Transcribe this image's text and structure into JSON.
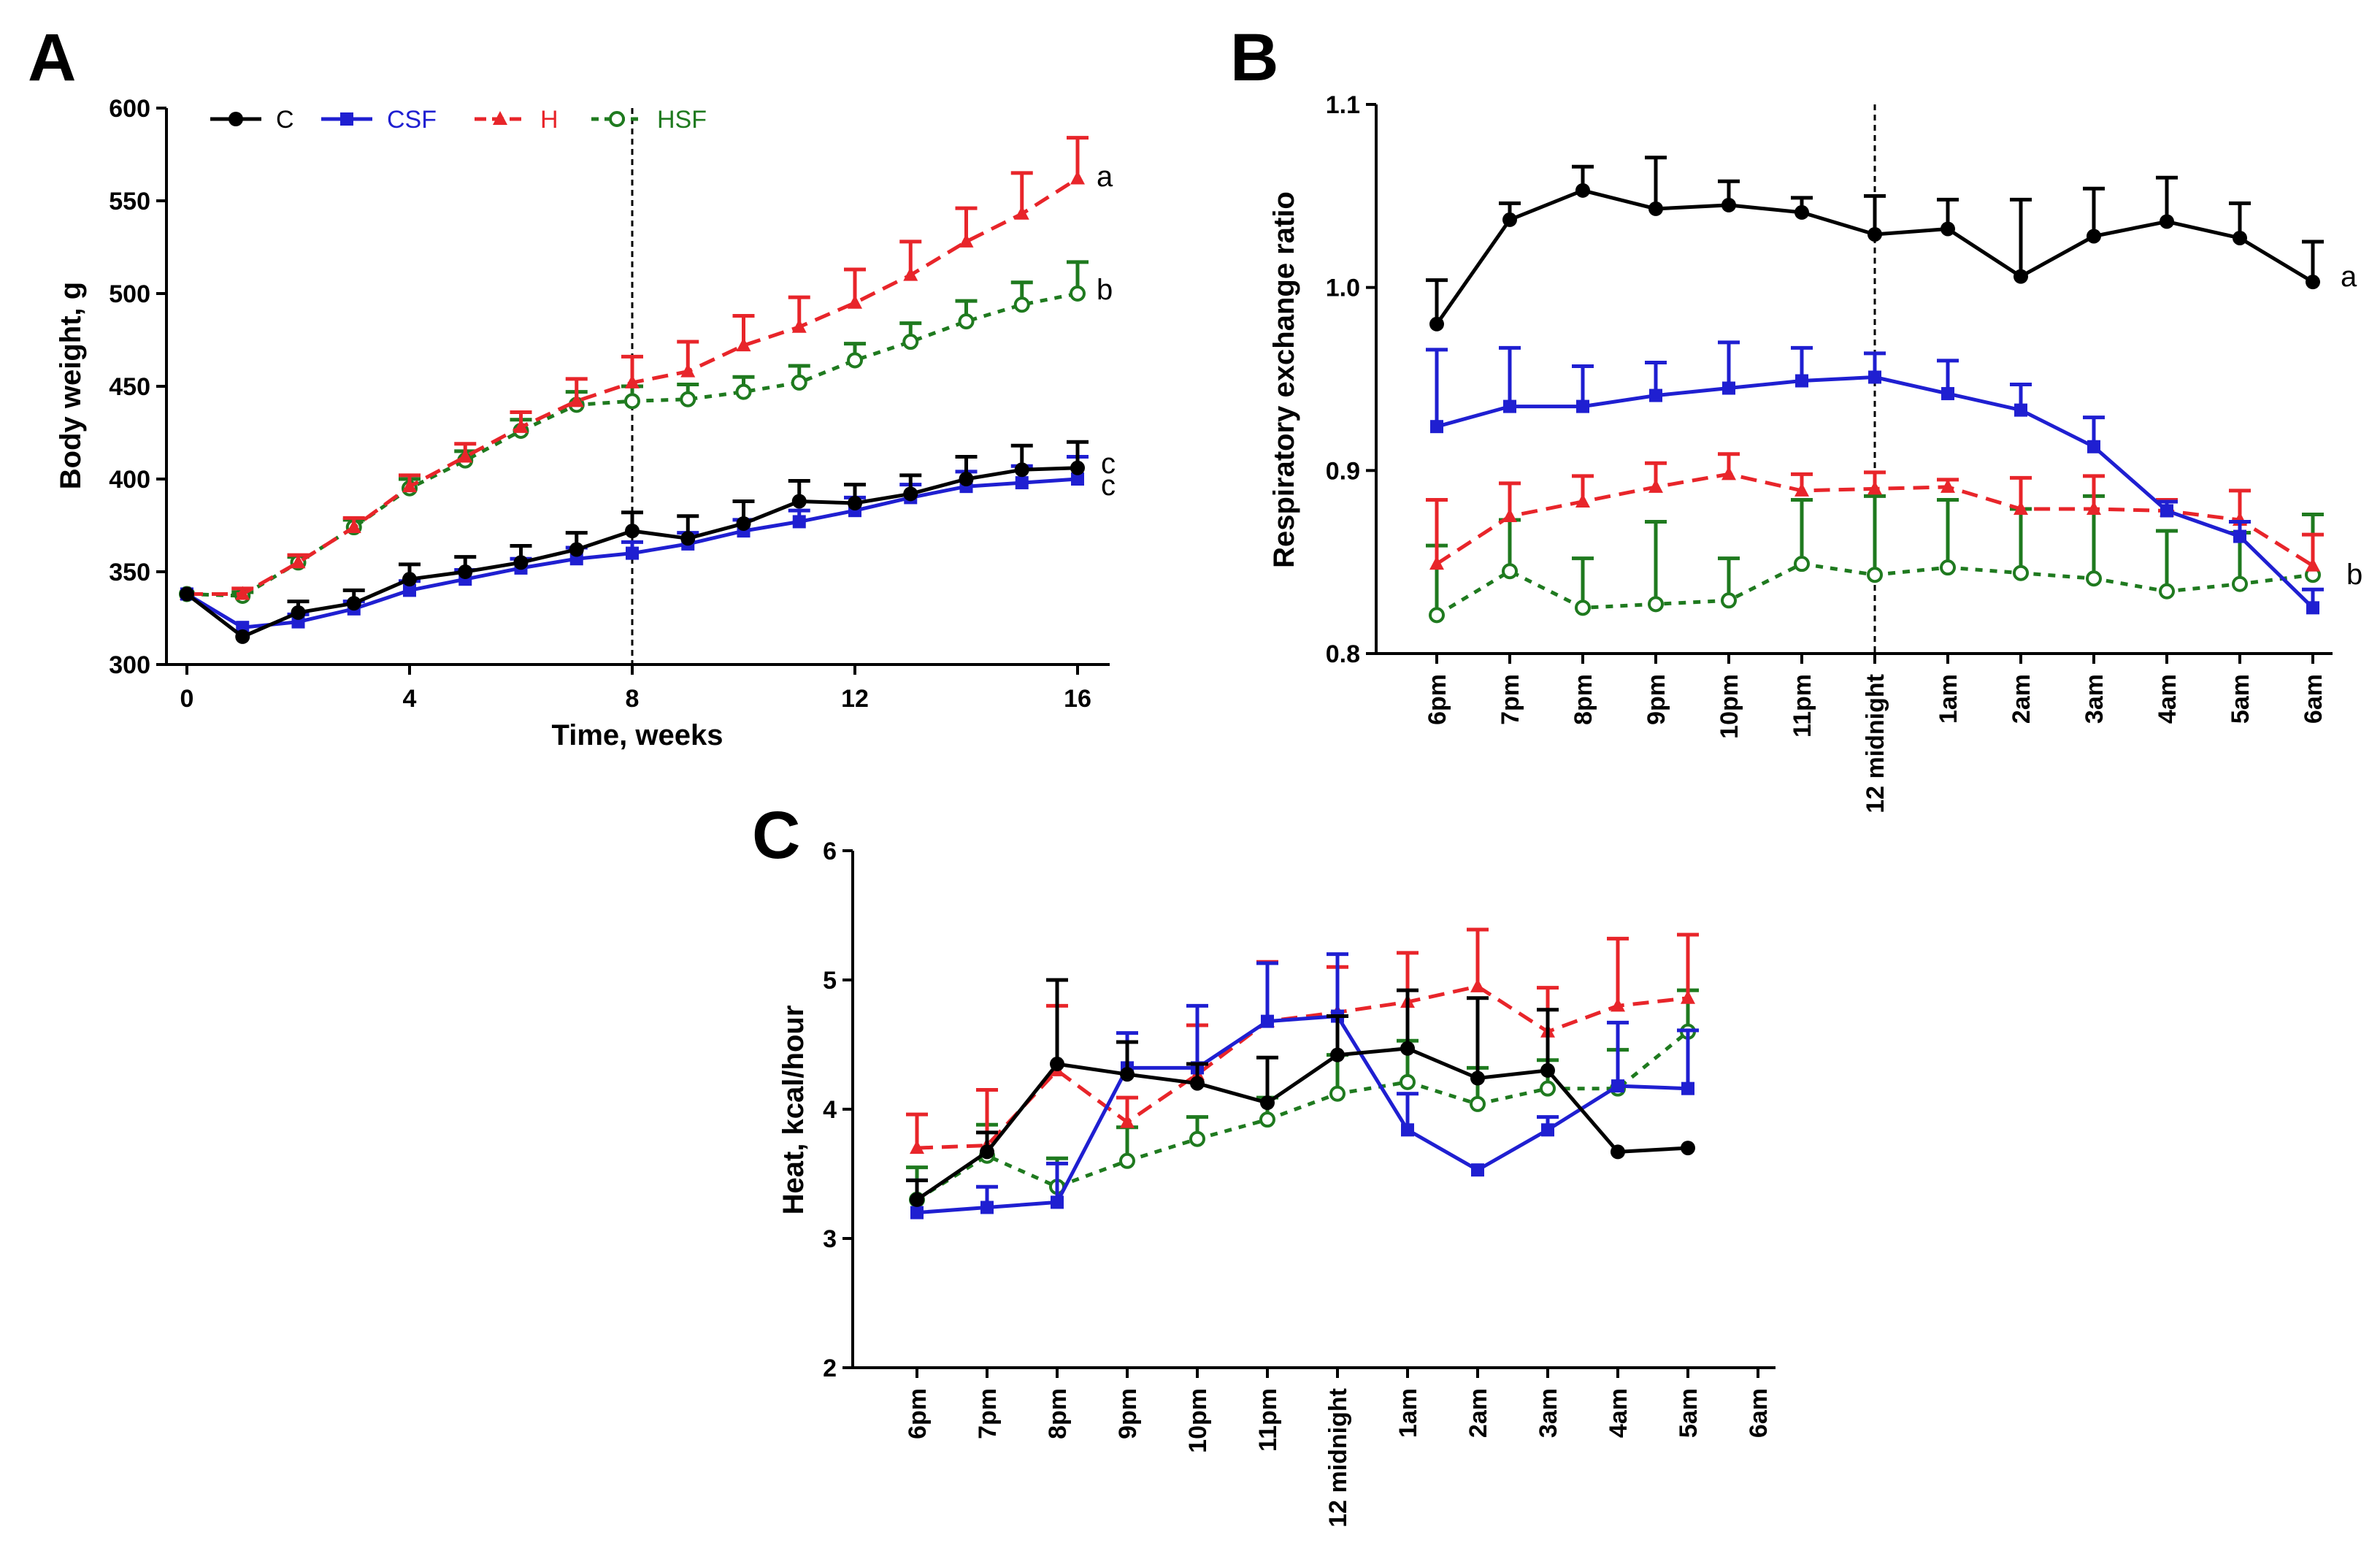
{
  "chart_data": [
    {
      "panel": "A",
      "type": "line",
      "xlabel": "Time, weeks",
      "ylabel": "Body weight, g",
      "xlim": [
        0,
        16
      ],
      "ylim": [
        300,
        600
      ],
      "xticks": [
        "0",
        "4",
        "8",
        "12",
        "16"
      ],
      "yticks": [
        "300",
        "350",
        "400",
        "450",
        "500",
        "550",
        "600"
      ],
      "x": [
        0,
        1,
        2,
        3,
        4,
        5,
        6,
        7,
        8,
        9,
        10,
        11,
        12,
        13,
        14,
        15,
        16
      ],
      "reference_line_x": 8,
      "legend": [
        "C",
        "CSF",
        "H",
        "HSF"
      ],
      "series": [
        {
          "name": "C",
          "color": "#000000",
          "values": [
            338,
            315,
            328,
            333,
            346,
            350,
            355,
            362,
            372,
            368,
            376,
            388,
            387,
            392,
            400,
            405,
            406
          ],
          "errors": [
            0,
            0,
            6,
            7,
            8,
            8,
            9,
            9,
            10,
            12,
            12,
            11,
            10,
            10,
            12,
            13,
            14
          ]
        },
        {
          "name": "CSF",
          "color": "#1f1fd1",
          "values": [
            338,
            320,
            323,
            330,
            340,
            346,
            352,
            357,
            360,
            365,
            372,
            377,
            383,
            390,
            396,
            398,
            400
          ],
          "errors": [
            0,
            0,
            4,
            4,
            5,
            5,
            5,
            6,
            6,
            6,
            6,
            6,
            7,
            7,
            8,
            9,
            12
          ]
        },
        {
          "name": "H",
          "color": "#e8252a",
          "values": [
            338,
            338,
            355,
            374,
            396,
            412,
            428,
            442,
            452,
            458,
            472,
            482,
            495,
            510,
            528,
            543,
            562
          ],
          "errors": [
            0,
            3,
            4,
            5,
            6,
            7,
            8,
            12,
            14,
            16,
            16,
            16,
            18,
            18,
            18,
            22,
            22
          ]
        },
        {
          "name": "HSF",
          "color": "#1f7a1f",
          "values": [
            338,
            337,
            355,
            374,
            395,
            410,
            426,
            440,
            442,
            443,
            447,
            452,
            464,
            474,
            485,
            494,
            500
          ],
          "errors": [
            0,
            2,
            3,
            4,
            5,
            5,
            6,
            7,
            8,
            8,
            8,
            9,
            9,
            10,
            11,
            12,
            17
          ]
        }
      ],
      "group_labels": [
        "a",
        "b",
        "c",
        "c"
      ]
    },
    {
      "panel": "B",
      "type": "line",
      "xlabel": "",
      "ylabel": "Respiratory exchange ratio",
      "ylim": [
        0.8,
        1.1
      ],
      "yticks": [
        "0.8",
        "0.9",
        "1.0",
        "1.1"
      ],
      "categories": [
        "6pm",
        "7pm",
        "8pm",
        "9pm",
        "10pm",
        "11pm",
        "12 midnight",
        "1am",
        "2am",
        "3am",
        "4am",
        "5am",
        "6am"
      ],
      "reference_line_category": "12 midnight",
      "series": [
        {
          "name": "C",
          "color": "#000000",
          "values": [
            0.98,
            1.037,
            1.053,
            1.043,
            1.045,
            1.041,
            1.029,
            1.032,
            1.006,
            1.028,
            1.036,
            1.027,
            1.003
          ],
          "errors": [
            0.024,
            0.009,
            0.013,
            0.028,
            0.013,
            0.008,
            0.021,
            0.016,
            0.042,
            0.026,
            0.024,
            0.019,
            0.022
          ]
        },
        {
          "name": "CSF",
          "color": "#1f1fd1",
          "values": [
            0.924,
            0.935,
            0.935,
            0.941,
            0.945,
            0.949,
            0.951,
            0.942,
            0.933,
            0.913,
            0.878,
            0.864,
            0.825
          ],
          "errors": [
            0.042,
            0.032,
            0.022,
            0.018,
            0.025,
            0.018,
            0.013,
            0.018,
            0.014,
            0.016,
            0.005,
            0.008,
            0.01
          ]
        },
        {
          "name": "H",
          "color": "#e8252a",
          "values": [
            0.849,
            0.875,
            0.883,
            0.891,
            0.898,
            0.889,
            0.89,
            0.891,
            0.879,
            0.879,
            0.878,
            0.873,
            0.848
          ],
          "errors": [
            0.035,
            0.018,
            0.014,
            0.013,
            0.011,
            0.009,
            0.009,
            0.004,
            0.017,
            0.018,
            0.006,
            0.016,
            0.017
          ]
        },
        {
          "name": "HSF",
          "color": "#1f7a1f",
          "values": [
            0.821,
            0.845,
            0.825,
            0.827,
            0.829,
            0.849,
            0.843,
            0.847,
            0.844,
            0.841,
            0.834,
            0.838,
            0.843
          ],
          "errors": [
            0.038,
            0.028,
            0.027,
            0.045,
            0.023,
            0.035,
            0.043,
            0.037,
            0.035,
            0.045,
            0.033,
            0.028,
            0.033
          ]
        }
      ],
      "group_labels": [
        "a",
        "b"
      ]
    },
    {
      "panel": "C",
      "type": "line",
      "xlabel": "",
      "ylabel": "Heat, kcal/hour",
      "ylim": [
        2,
        6
      ],
      "yticks": [
        "2",
        "3",
        "4",
        "5",
        "6"
      ],
      "categories": [
        "6pm",
        "7pm",
        "8pm",
        "9pm",
        "10pm",
        "11pm",
        "12 midnight",
        "1am",
        "2am",
        "3am",
        "4am",
        "5am",
        "6am"
      ],
      "series": [
        {
          "name": "C",
          "color": "#000000",
          "values": [
            3.3,
            3.67,
            4.35,
            4.27,
            4.2,
            4.05,
            4.42,
            4.47,
            4.24,
            4.3,
            3.67,
            3.7,
            null
          ],
          "errors": [
            0.15,
            0.15,
            0.65,
            0.25,
            0.15,
            0.35,
            0.3,
            0.45,
            0.62,
            0.47,
            0.0,
            0.0,
            null
          ]
        },
        {
          "name": "CSF",
          "color": "#1f1fd1",
          "values": [
            3.2,
            3.24,
            3.28,
            4.32,
            4.32,
            4.68,
            4.72,
            3.84,
            3.53,
            3.84,
            4.18,
            4.16,
            null
          ],
          "errors": [
            0.25,
            0.16,
            0.3,
            0.27,
            0.48,
            0.45,
            0.48,
            0.28,
            0.0,
            0.1,
            0.49,
            0.45,
            null
          ]
        },
        {
          "name": "H",
          "color": "#e8252a",
          "values": [
            3.7,
            3.72,
            4.3,
            3.9,
            4.27,
            4.68,
            4.75,
            4.83,
            4.95,
            4.6,
            4.8,
            4.86,
            null
          ],
          "errors": [
            0.26,
            0.43,
            0.5,
            0.19,
            0.38,
            0.46,
            0.35,
            0.38,
            0.44,
            0.34,
            0.52,
            0.49,
            null
          ]
        },
        {
          "name": "HSF",
          "color": "#1f7a1f",
          "values": [
            3.3,
            3.64,
            3.4,
            3.6,
            3.77,
            3.92,
            4.12,
            4.21,
            4.04,
            4.16,
            4.16,
            4.6,
            null
          ],
          "errors": [
            0.25,
            0.24,
            0.22,
            0.26,
            0.17,
            0.17,
            0.3,
            0.32,
            0.28,
            0.22,
            0.3,
            0.32,
            null
          ]
        }
      ]
    }
  ],
  "panel_letters": [
    "A",
    "B",
    "C"
  ]
}
